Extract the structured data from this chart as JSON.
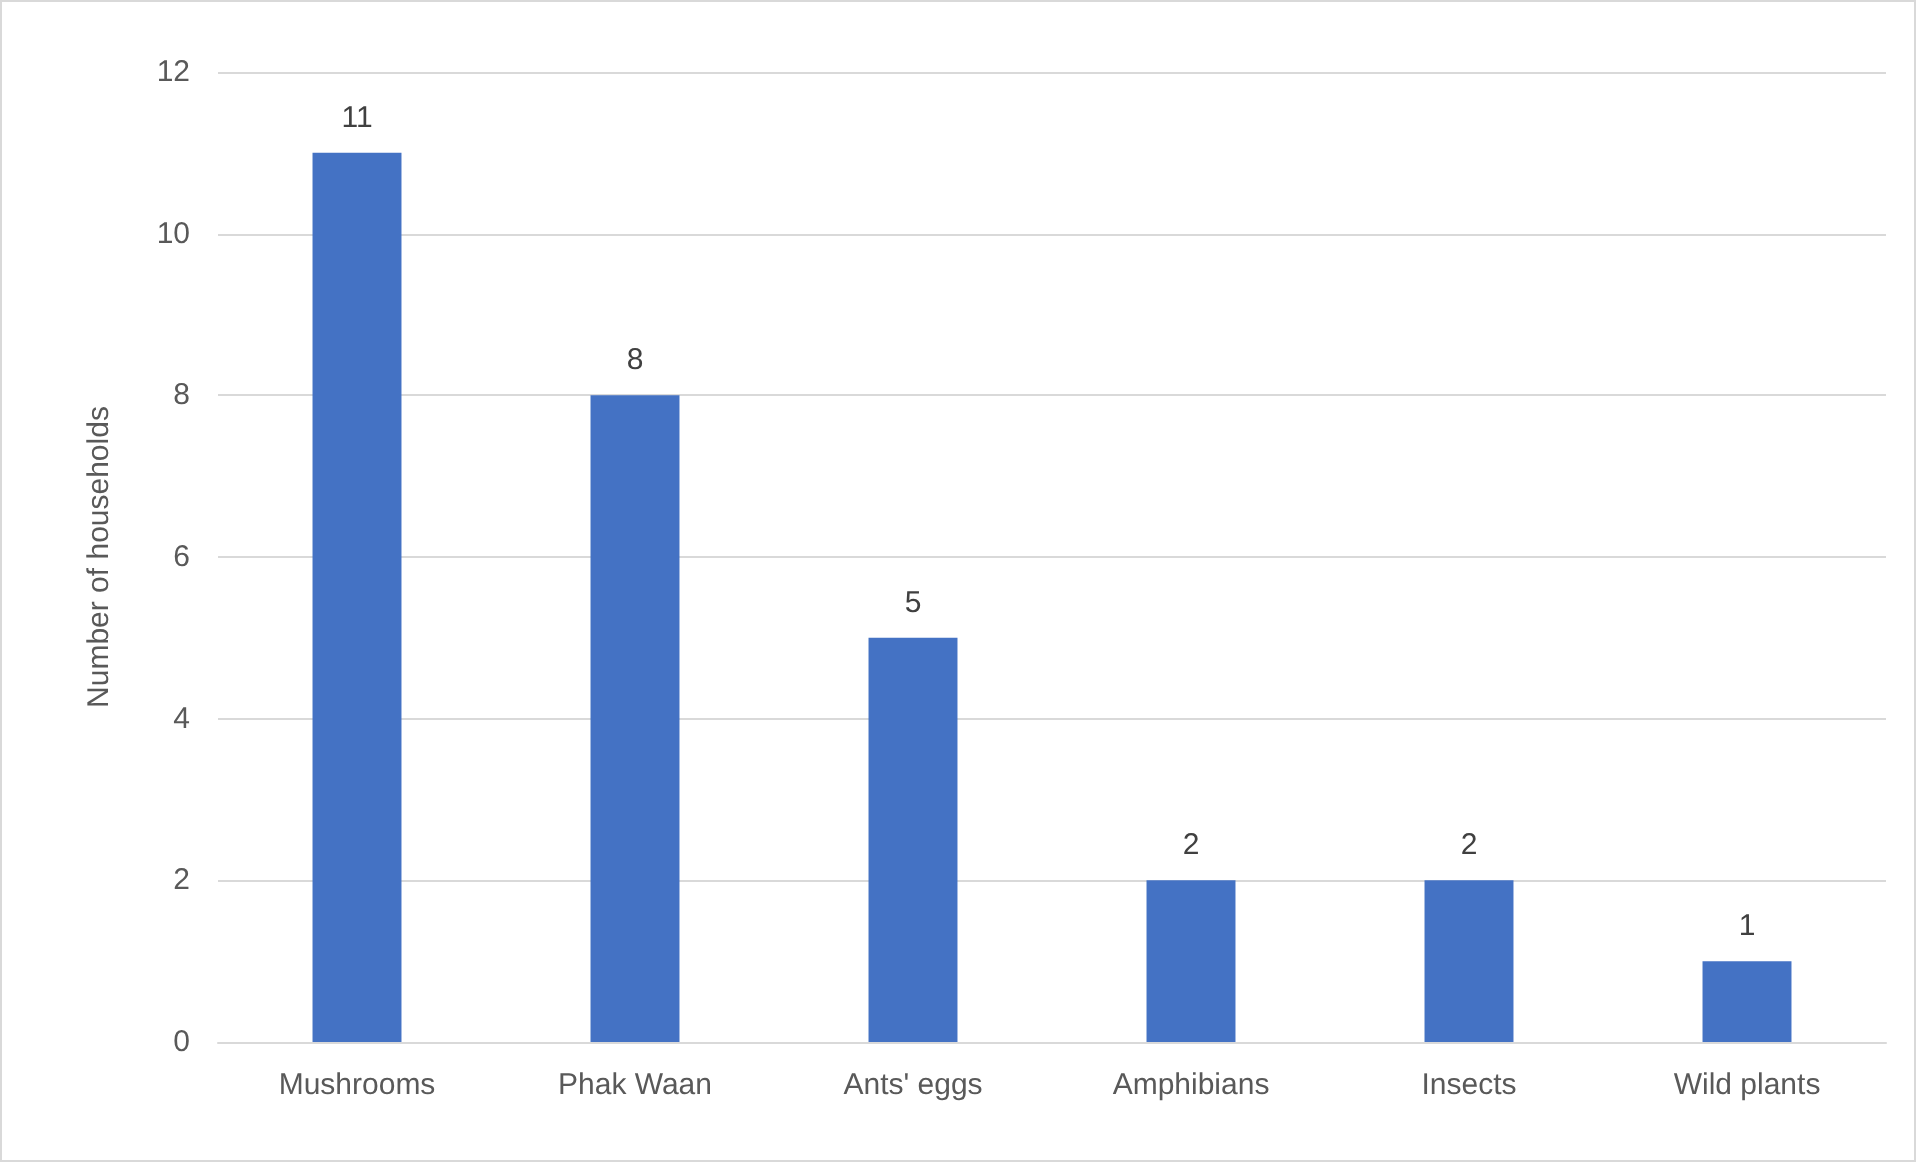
{
  "chart_data": {
    "type": "bar",
    "ylabel": "Number of households",
    "categories": [
      "Mushrooms",
      "Phak Waan",
      "Ants' eggs",
      "Amphibians",
      "Insects",
      "Wild plants"
    ],
    "values": [
      11,
      8,
      5,
      2,
      2,
      1
    ],
    "color": "#4472c4",
    "ylim": [
      0,
      12
    ],
    "yticks": [
      0,
      2,
      4,
      6,
      8,
      10,
      12
    ],
    "grid": "y",
    "data_labels": true
  }
}
